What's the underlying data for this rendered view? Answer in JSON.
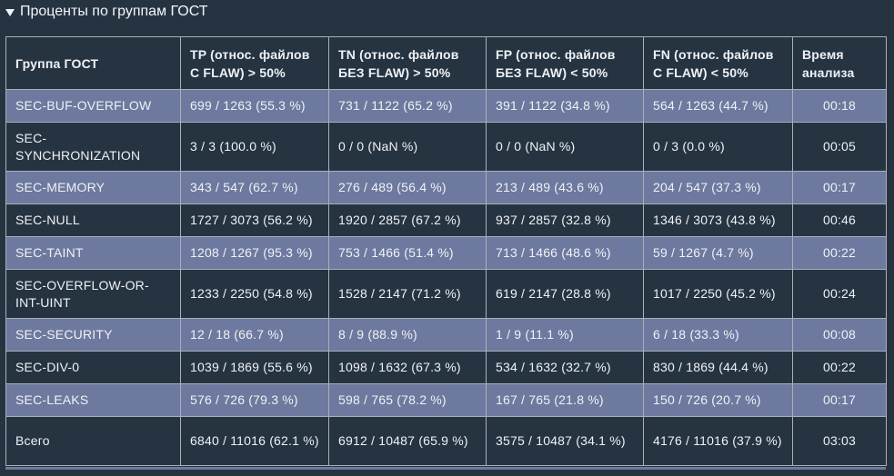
{
  "section": {
    "title": "Проценты по группам ГОСТ"
  },
  "table": {
    "headers": {
      "group": "Группа ГОСТ",
      "tp": "TP (относ. файлов С FLAW) > 50%",
      "tn": "TN (относ. файлов БЕЗ FLAW) > 50%",
      "fp": "FP (относ. файлов БЕЗ FLAW) < 50%",
      "fn": "FN (относ. файлов С FLAW) < 50%",
      "time": "Время анализа"
    },
    "rows": [
      {
        "group": "SEC-BUF-OVERFLOW",
        "tp": "699 / 1263 (55.3 %)",
        "tn": "731 / 1122 (65.2 %)",
        "fp": "391 / 1122 (34.8 %)",
        "fn": "564 / 1263 (44.7 %)",
        "time": "00:18"
      },
      {
        "group": "SEC-SYNCHRONIZATION",
        "tp": "3 / 3 (100.0 %)",
        "tn": "0 / 0 (NaN %)",
        "fp": "0 / 0 (NaN %)",
        "fn": "0 / 3 (0.0 %)",
        "time": "00:05"
      },
      {
        "group": "SEC-MEMORY",
        "tp": "343 / 547 (62.7 %)",
        "tn": "276 / 489 (56.4 %)",
        "fp": "213 / 489 (43.6 %)",
        "fn": "204 / 547 (37.3 %)",
        "time": "00:17"
      },
      {
        "group": "SEC-NULL",
        "tp": "1727 / 3073 (56.2 %)",
        "tn": "1920 / 2857 (67.2 %)",
        "fp": "937 / 2857 (32.8 %)",
        "fn": "1346 / 3073 (43.8 %)",
        "time": "00:46"
      },
      {
        "group": "SEC-TAINT",
        "tp": "1208 / 1267 (95.3 %)",
        "tn": "753 / 1466 (51.4 %)",
        "fp": "713 / 1466 (48.6 %)",
        "fn": "59 / 1267 (4.7 %)",
        "time": "00:22"
      },
      {
        "group": "SEC-OVERFLOW-OR-INT-UINT",
        "tp": "1233 / 2250 (54.8 %)",
        "tn": "1528 / 2147 (71.2 %)",
        "fp": "619 / 2147 (28.8 %)",
        "fn": "1017 / 2250 (45.2 %)",
        "time": "00:24"
      },
      {
        "group": "SEC-SECURITY",
        "tp": "12 / 18 (66.7 %)",
        "tn": "8 / 9 (88.9 %)",
        "fp": "1 / 9 (11.1 %)",
        "fn": "6 / 18 (33.3 %)",
        "time": "00:08"
      },
      {
        "group": "SEC-DIV-0",
        "tp": "1039 / 1869 (55.6 %)",
        "tn": "1098 / 1632 (67.3 %)",
        "fp": "534 / 1632 (32.7 %)",
        "fn": "830 / 1869 (44.4 %)",
        "time": "00:22"
      },
      {
        "group": "SEC-LEAKS",
        "tp": "576 / 726 (79.3 %)",
        "tn": "598 / 765 (78.2 %)",
        "fp": "167 / 765 (21.8 %)",
        "fn": "150 / 726 (20.7 %)",
        "time": "00:17"
      },
      {
        "group": "Всего",
        "tp": "6840 / 11016 (62.1 %)",
        "tn": "6912 / 10487 (65.9 %)",
        "fp": "3575 / 10487 (34.1 %)",
        "fn": "4176 / 11016 (37.9 %)",
        "time": "03:03"
      }
    ]
  },
  "colors": {
    "background": "#263442",
    "row_alt": "#6d799e",
    "border": "#a9b0b8"
  },
  "icons": {
    "collapse": "triangle-down-icon"
  }
}
